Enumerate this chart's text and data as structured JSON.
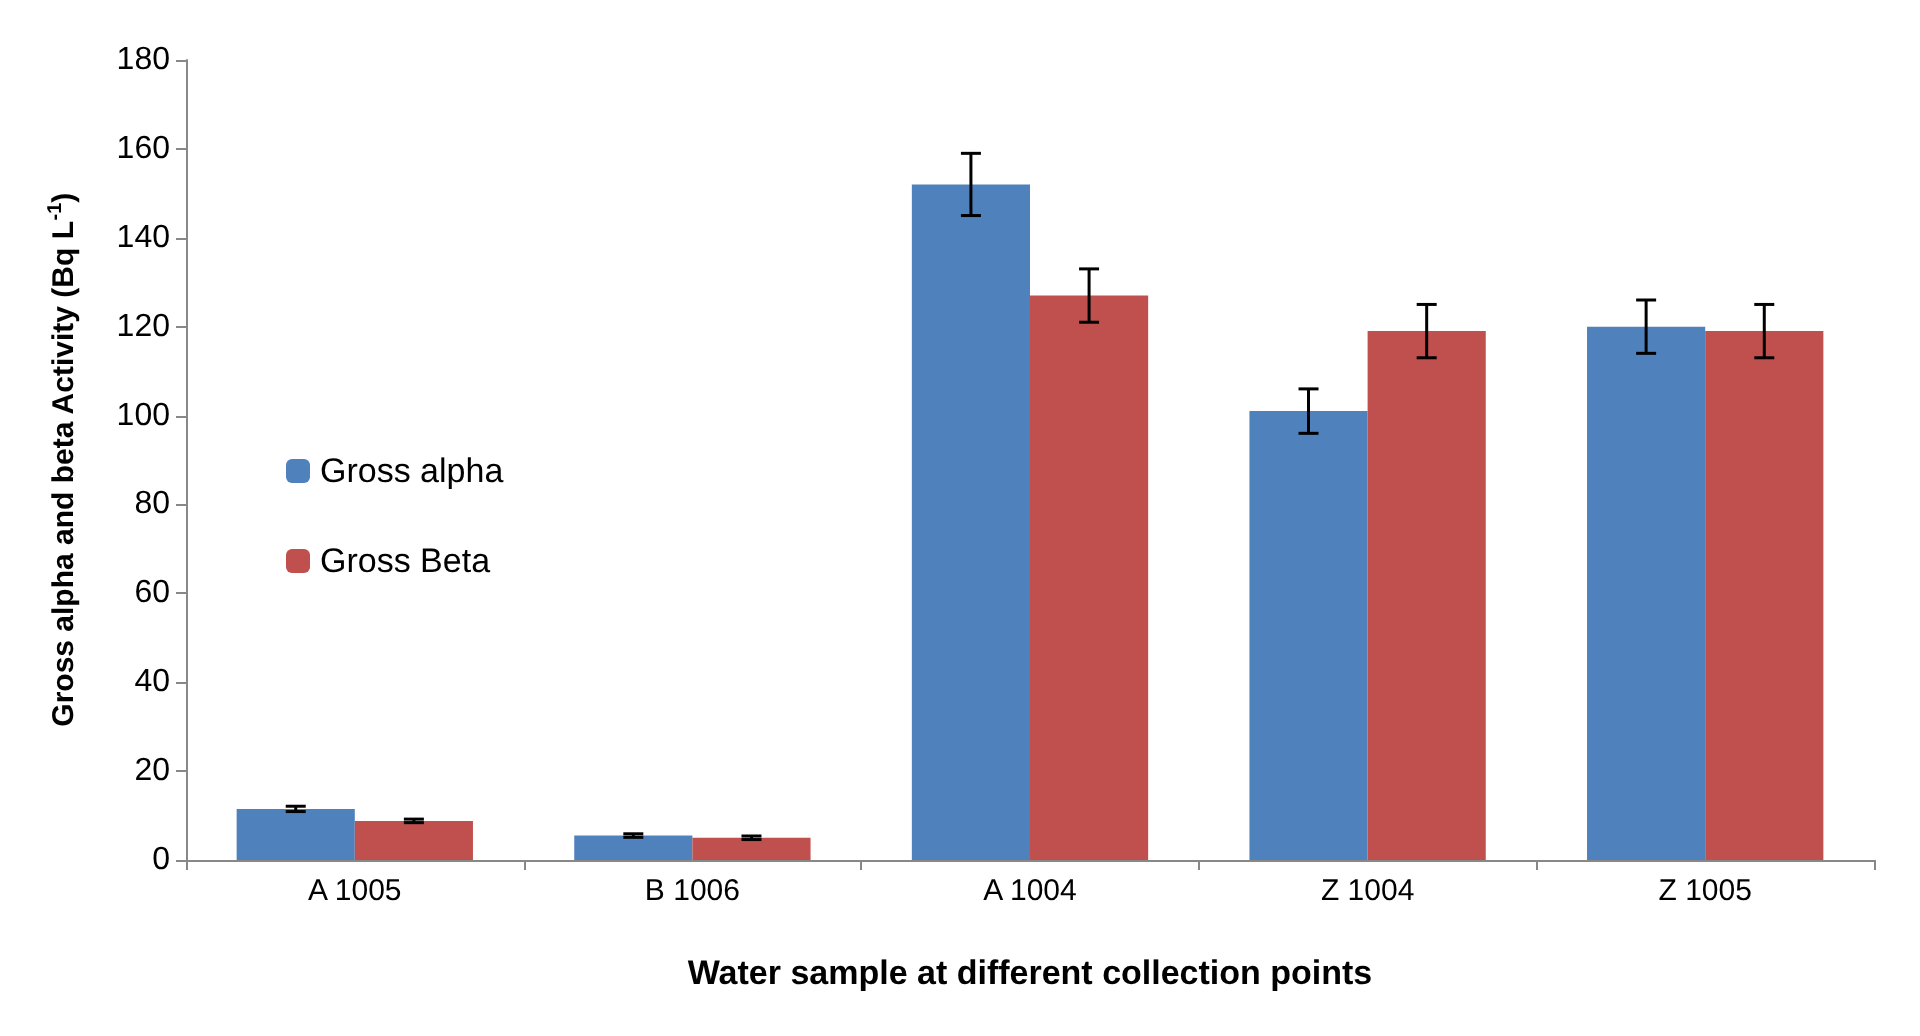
{
  "chart_data": {
    "type": "bar",
    "xlabel": "Water sample at different collection points",
    "ylabel": "Gross alpha and beta Activity (Bq L$^{-1}$)",
    "categories": [
      "A 1005",
      "B 1006",
      "A 1004",
      "Z 1004",
      "Z 1005"
    ],
    "series": [
      {
        "name": "Gross alpha",
        "color": "#4f81bd",
        "values": [
          11.5,
          5.5,
          152,
          101,
          120
        ],
        "errors": [
          0.6,
          0.4,
          7,
          5,
          6
        ]
      },
      {
        "name": "Gross Beta",
        "color": "#c0504d",
        "values": [
          8.8,
          5.0,
          127,
          119,
          119
        ],
        "errors": [
          0.4,
          0.4,
          6,
          6,
          6
        ]
      }
    ],
    "ylim": [
      0,
      180
    ],
    "yticks": [
      0,
      20,
      40,
      60,
      80,
      100,
      120,
      140,
      160,
      180
    ],
    "grid": false,
    "legend": "left"
  }
}
